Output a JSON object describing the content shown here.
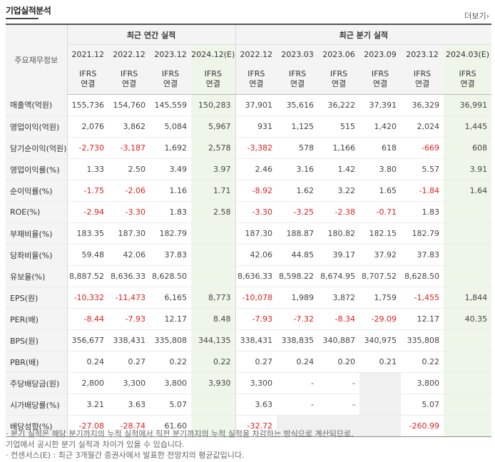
{
  "title": "기업실적분석",
  "more_label": "더보기",
  "more_icon": "chevron-right-icon",
  "header": {
    "row_label": "주요재무정보",
    "annual_group": "최근 연간 실적",
    "quarter_group": "최근 분기 실적",
    "periods": [
      "2021.12",
      "2022.12",
      "2023.12",
      "2024.12(E)",
      "2022.12",
      "2023.03",
      "2023.06",
      "2023.09",
      "2023.12",
      "2024.03(E)"
    ],
    "ifrs_top": "IFRS",
    "ifrs_bottom": "연결"
  },
  "rows": [
    {
      "label": "매출액(억원)",
      "values": [
        "155,736",
        "154,760",
        "145,559",
        "150,283",
        "37,901",
        "35,616",
        "36,222",
        "37,391",
        "36,329",
        "36,991"
      ]
    },
    {
      "label": "영업이익(억원)",
      "values": [
        "2,076",
        "3,862",
        "5,084",
        "5,967",
        "931",
        "1,125",
        "515",
        "1,420",
        "2,024",
        "1,445"
      ]
    },
    {
      "label": "당기순이익(억원)",
      "values": [
        "-2,730",
        "-3,187",
        "1,692",
        "2,578",
        "-3,382",
        "578",
        "1,166",
        "618",
        "-669",
        "608"
      ]
    },
    {
      "label": "영업이익률(%)",
      "values": [
        "1.33",
        "2.50",
        "3.49",
        "3.97",
        "2.46",
        "3.16",
        "1.42",
        "3.80",
        "5.57",
        "3.91"
      ]
    },
    {
      "label": "순이익률(%)",
      "values": [
        "-1.75",
        "-2.06",
        "1.16",
        "1.71",
        "-8.92",
        "1.62",
        "3.22",
        "1.65",
        "-1.84",
        "1.64"
      ]
    },
    {
      "label": "ROE(%)",
      "values": [
        "-2.94",
        "-3.30",
        "1.83",
        "2.58",
        "-3.30",
        "-3.25",
        "-2.38",
        "-0.71",
        "1.83",
        ""
      ]
    },
    {
      "label": "부채비율(%)",
      "values": [
        "183.35",
        "187.30",
        "182.79",
        "",
        "187.30",
        "188.87",
        "180.82",
        "182.15",
        "182.79",
        ""
      ]
    },
    {
      "label": "당좌비율(%)",
      "values": [
        "59.48",
        "42.06",
        "37.83",
        "",
        "42.06",
        "44.85",
        "39.17",
        "37.92",
        "37.83",
        ""
      ]
    },
    {
      "label": "유보율(%)",
      "values": [
        "8,887.52",
        "8,636.33",
        "8,628.50",
        "",
        "8,636.33",
        "8,598.22",
        "8,674.95",
        "8,707.52",
        "8,628.50",
        ""
      ]
    },
    {
      "label": "EPS(원)",
      "values": [
        "-10,332",
        "-11,473",
        "6,165",
        "8,773",
        "-10,078",
        "1,989",
        "3,872",
        "1,759",
        "-1,455",
        "1,844"
      ]
    },
    {
      "label": "PER(배)",
      "values": [
        "-8.44",
        "-7.93",
        "12.17",
        "8.48",
        "-7.93",
        "-7.32",
        "-8.34",
        "-29.09",
        "12.17",
        "40.35"
      ]
    },
    {
      "label": "BPS(원)",
      "values": [
        "356,677",
        "338,431",
        "335,808",
        "344,135",
        "338,431",
        "338,835",
        "340,887",
        "340,975",
        "335,808",
        ""
      ]
    },
    {
      "label": "PBR(배)",
      "values": [
        "0.24",
        "0.27",
        "0.22",
        "0.22",
        "0.27",
        "0.24",
        "0.20",
        "0.21",
        "0.22",
        ""
      ]
    },
    {
      "label": "주당배당금(원)",
      "values": [
        "2,800",
        "3,300",
        "3,800",
        "3,930",
        "3,300",
        "-",
        "-",
        "",
        "3,800",
        ""
      ]
    },
    {
      "label": "시가배당률(%)",
      "values": [
        "3.21",
        "3.63",
        "5.07",
        "",
        "3.63",
        "-",
        "-",
        "",
        "5.07",
        ""
      ]
    },
    {
      "label": "배당성향(%)",
      "values": [
        "-27.08",
        "-28.74",
        "61.60",
        "",
        "-32.72",
        "",
        "",
        "",
        "-260.99",
        ""
      ]
    }
  ],
  "notes": [
    "· 분기 실적은 해당 분기까지의 누적 실적에서 직전 분기까지의 누적 실적을 차감하는 방식으로 계산되므로,",
    "  기업에서 공시한 분기 실적과 차이가 있을 수 있습니다.",
    "· 컨센서스(E) : 최근 3개월간 증권사에서 발표한 전망치의 평균값입니다."
  ]
}
